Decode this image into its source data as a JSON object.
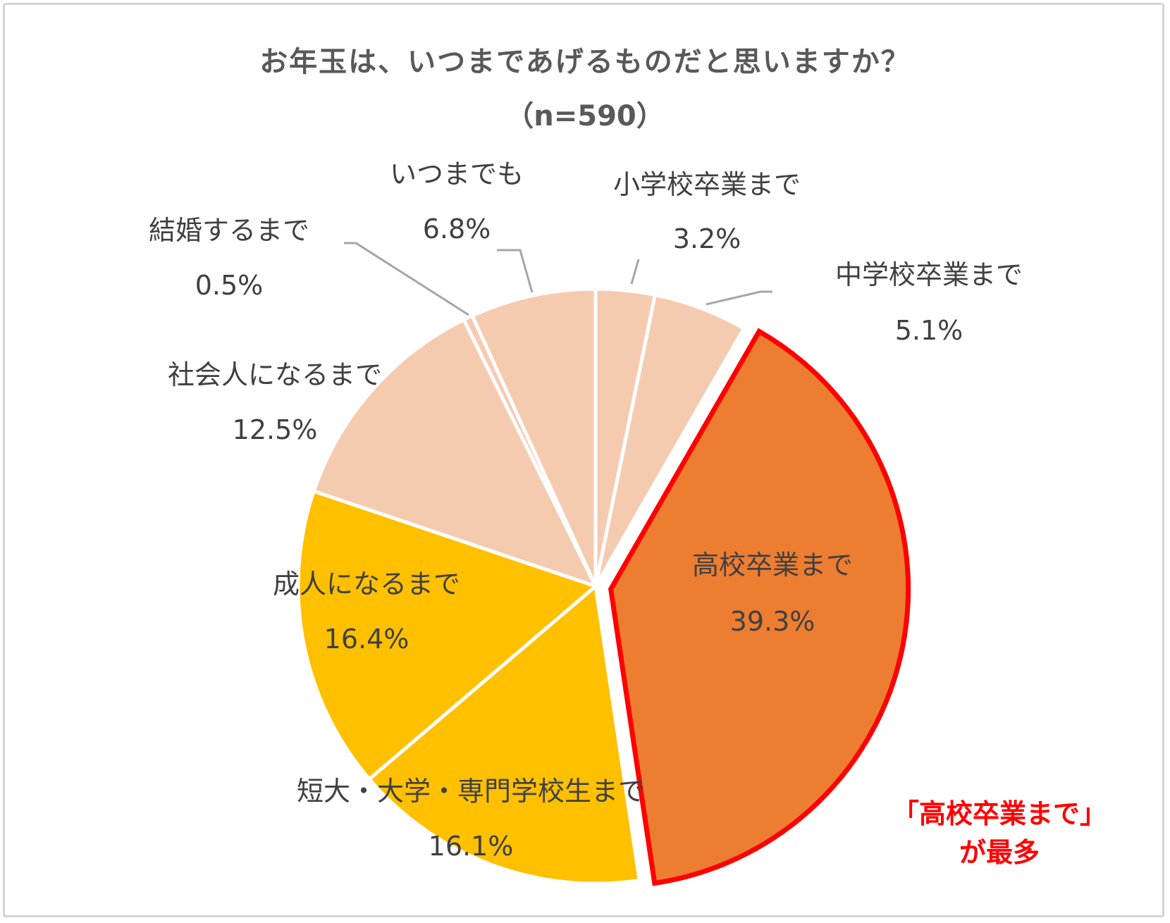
{
  "chart_data": {
    "type": "pie",
    "title": "お年玉は、いつまであげるものだと思いますか？",
    "subtitle": "（n=590）",
    "slices": [
      {
        "label": "小学校卒業まで",
        "value": 3.2,
        "display": "3.2%",
        "color": "#F5CBB0"
      },
      {
        "label": "中学校卒業まで",
        "value": 5.1,
        "display": "5.1%",
        "color": "#F5CBB0"
      },
      {
        "label": "高校卒業まで",
        "value": 39.3,
        "display": "39.3%",
        "color": "#ED7D31",
        "highlight": true
      },
      {
        "label": "短大・大学・専門学校生まで",
        "value": 16.1,
        "display": "16.1%",
        "color": "#FFC000"
      },
      {
        "label": "成人になるまで",
        "value": 16.4,
        "display": "16.4%",
        "color": "#FFC000"
      },
      {
        "label": "社会人になるまで",
        "value": 12.5,
        "display": "12.5%",
        "color": "#F5CBB0"
      },
      {
        "label": "結婚するまで",
        "value": 0.5,
        "display": "0.5%",
        "color": "#F5CBB0"
      },
      {
        "label": "いつまでも",
        "value": 6.8,
        "display": "6.8%",
        "color": "#F5CBB0"
      }
    ],
    "annotation": {
      "line1": "「高校卒業まで」",
      "line2": "が最多",
      "color": "#FF0000"
    }
  }
}
